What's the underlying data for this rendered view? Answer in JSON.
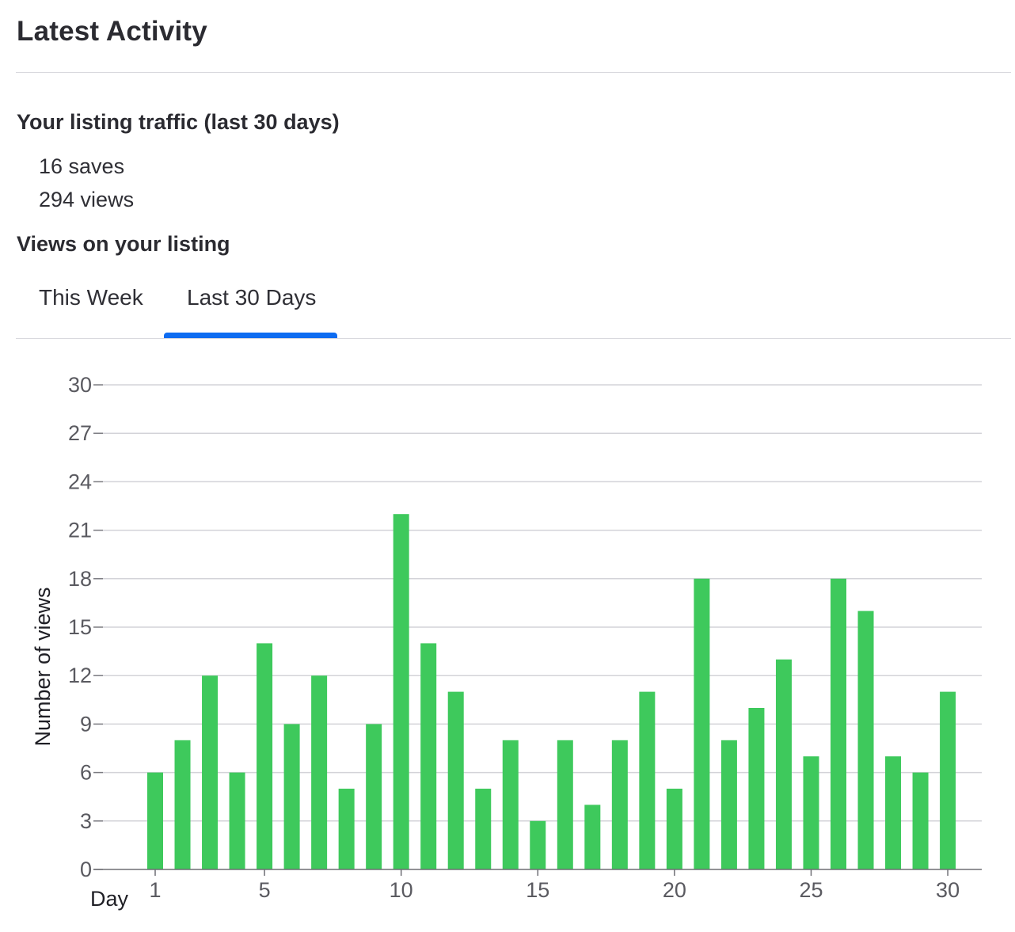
{
  "header": {
    "title": "Latest Activity"
  },
  "traffic": {
    "heading": "Your listing traffic (last 30 days)",
    "saves": "16 saves",
    "views": "294 views"
  },
  "views_section": {
    "heading": "Views on your listing"
  },
  "tabs": [
    {
      "label": "This Week",
      "active": false
    },
    {
      "label": "Last 30 Days",
      "active": true
    }
  ],
  "colors": {
    "bar": "#3ec95c",
    "tab_active": "#0e6cf1",
    "grid": "#d3d3d8"
  },
  "chart_data": {
    "type": "bar",
    "xlabel": "Day",
    "ylabel": "Number of views",
    "ylim": [
      0,
      30
    ],
    "yticks": [
      0,
      3,
      6,
      9,
      12,
      15,
      18,
      21,
      24,
      27,
      30
    ],
    "xticks": [
      1,
      5,
      10,
      15,
      20,
      25,
      30
    ],
    "grid": true,
    "x": [
      1,
      2,
      3,
      4,
      5,
      6,
      7,
      8,
      9,
      10,
      11,
      12,
      13,
      14,
      15,
      16,
      17,
      18,
      19,
      20,
      21,
      22,
      23,
      24,
      25,
      26,
      27,
      28,
      29,
      30
    ],
    "values": [
      6,
      8,
      12,
      6,
      14,
      9,
      12,
      5,
      9,
      22,
      14,
      11,
      5,
      8,
      3,
      8,
      4,
      8,
      11,
      5,
      18,
      8,
      10,
      13,
      7,
      18,
      16,
      7,
      6,
      11
    ]
  }
}
